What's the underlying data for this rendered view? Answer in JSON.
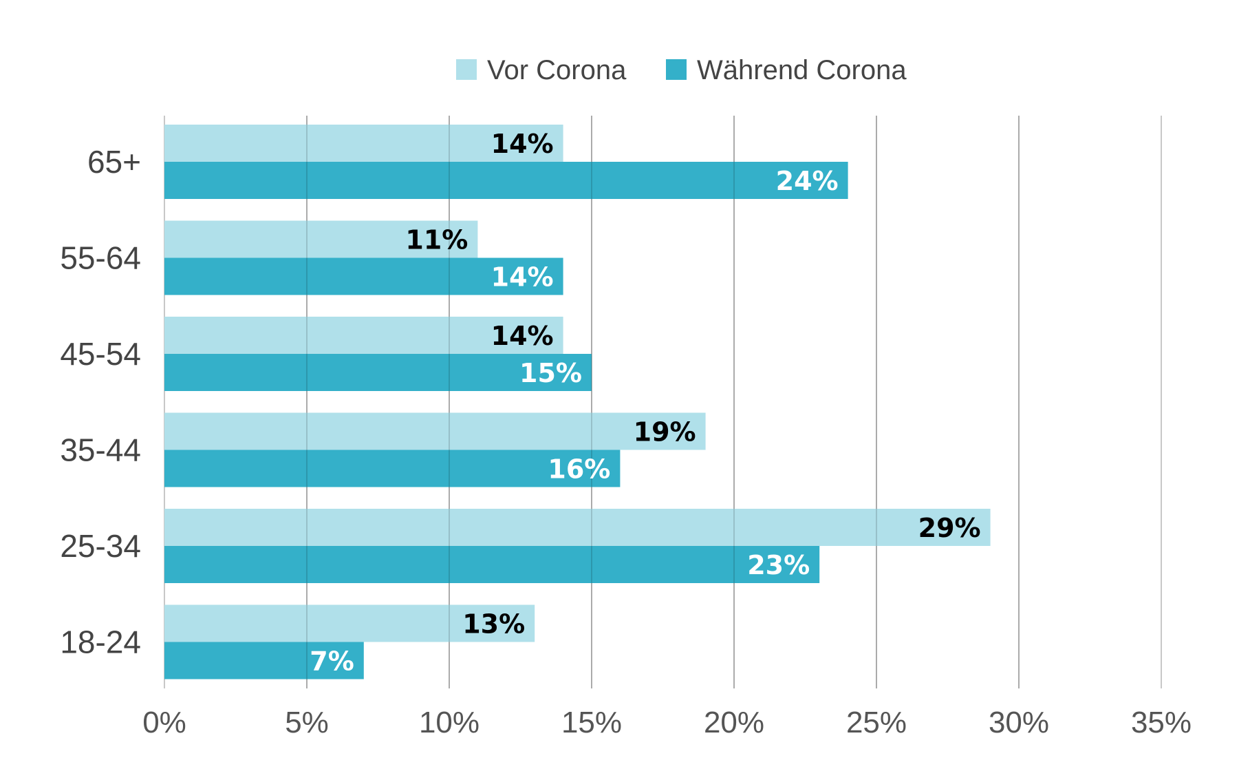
{
  "chart_data": {
    "type": "bar",
    "orientation": "horizontal",
    "categories": [
      "65+",
      "55-64",
      "45-54",
      "35-44",
      "25-34",
      "18-24"
    ],
    "series": [
      {
        "name": "Vor Corona",
        "color": "#b0e0ea",
        "label_color": "#000000",
        "values": [
          14,
          11,
          14,
          19,
          29,
          13
        ],
        "labels": [
          "14%",
          "11%",
          "14%",
          "19%",
          "29%",
          "13%"
        ]
      },
      {
        "name": "Während Corona",
        "color": "#34b0c9",
        "label_color": "#ffffff",
        "values": [
          24,
          14,
          15,
          16,
          23,
          7
        ],
        "labels": [
          "24%",
          "14%",
          "15%",
          "16%",
          "23%",
          "7%"
        ]
      }
    ],
    "xlim": [
      0,
      35
    ],
    "xticks": [
      0,
      5,
      10,
      15,
      20,
      25,
      30,
      35
    ],
    "xtick_labels": [
      "0%",
      "5%",
      "10%",
      "15%",
      "20%",
      "25%",
      "30%",
      "35%"
    ],
    "grid": "vertical",
    "legend_position": "top-center",
    "title": "",
    "xlabel": "",
    "ylabel": ""
  }
}
